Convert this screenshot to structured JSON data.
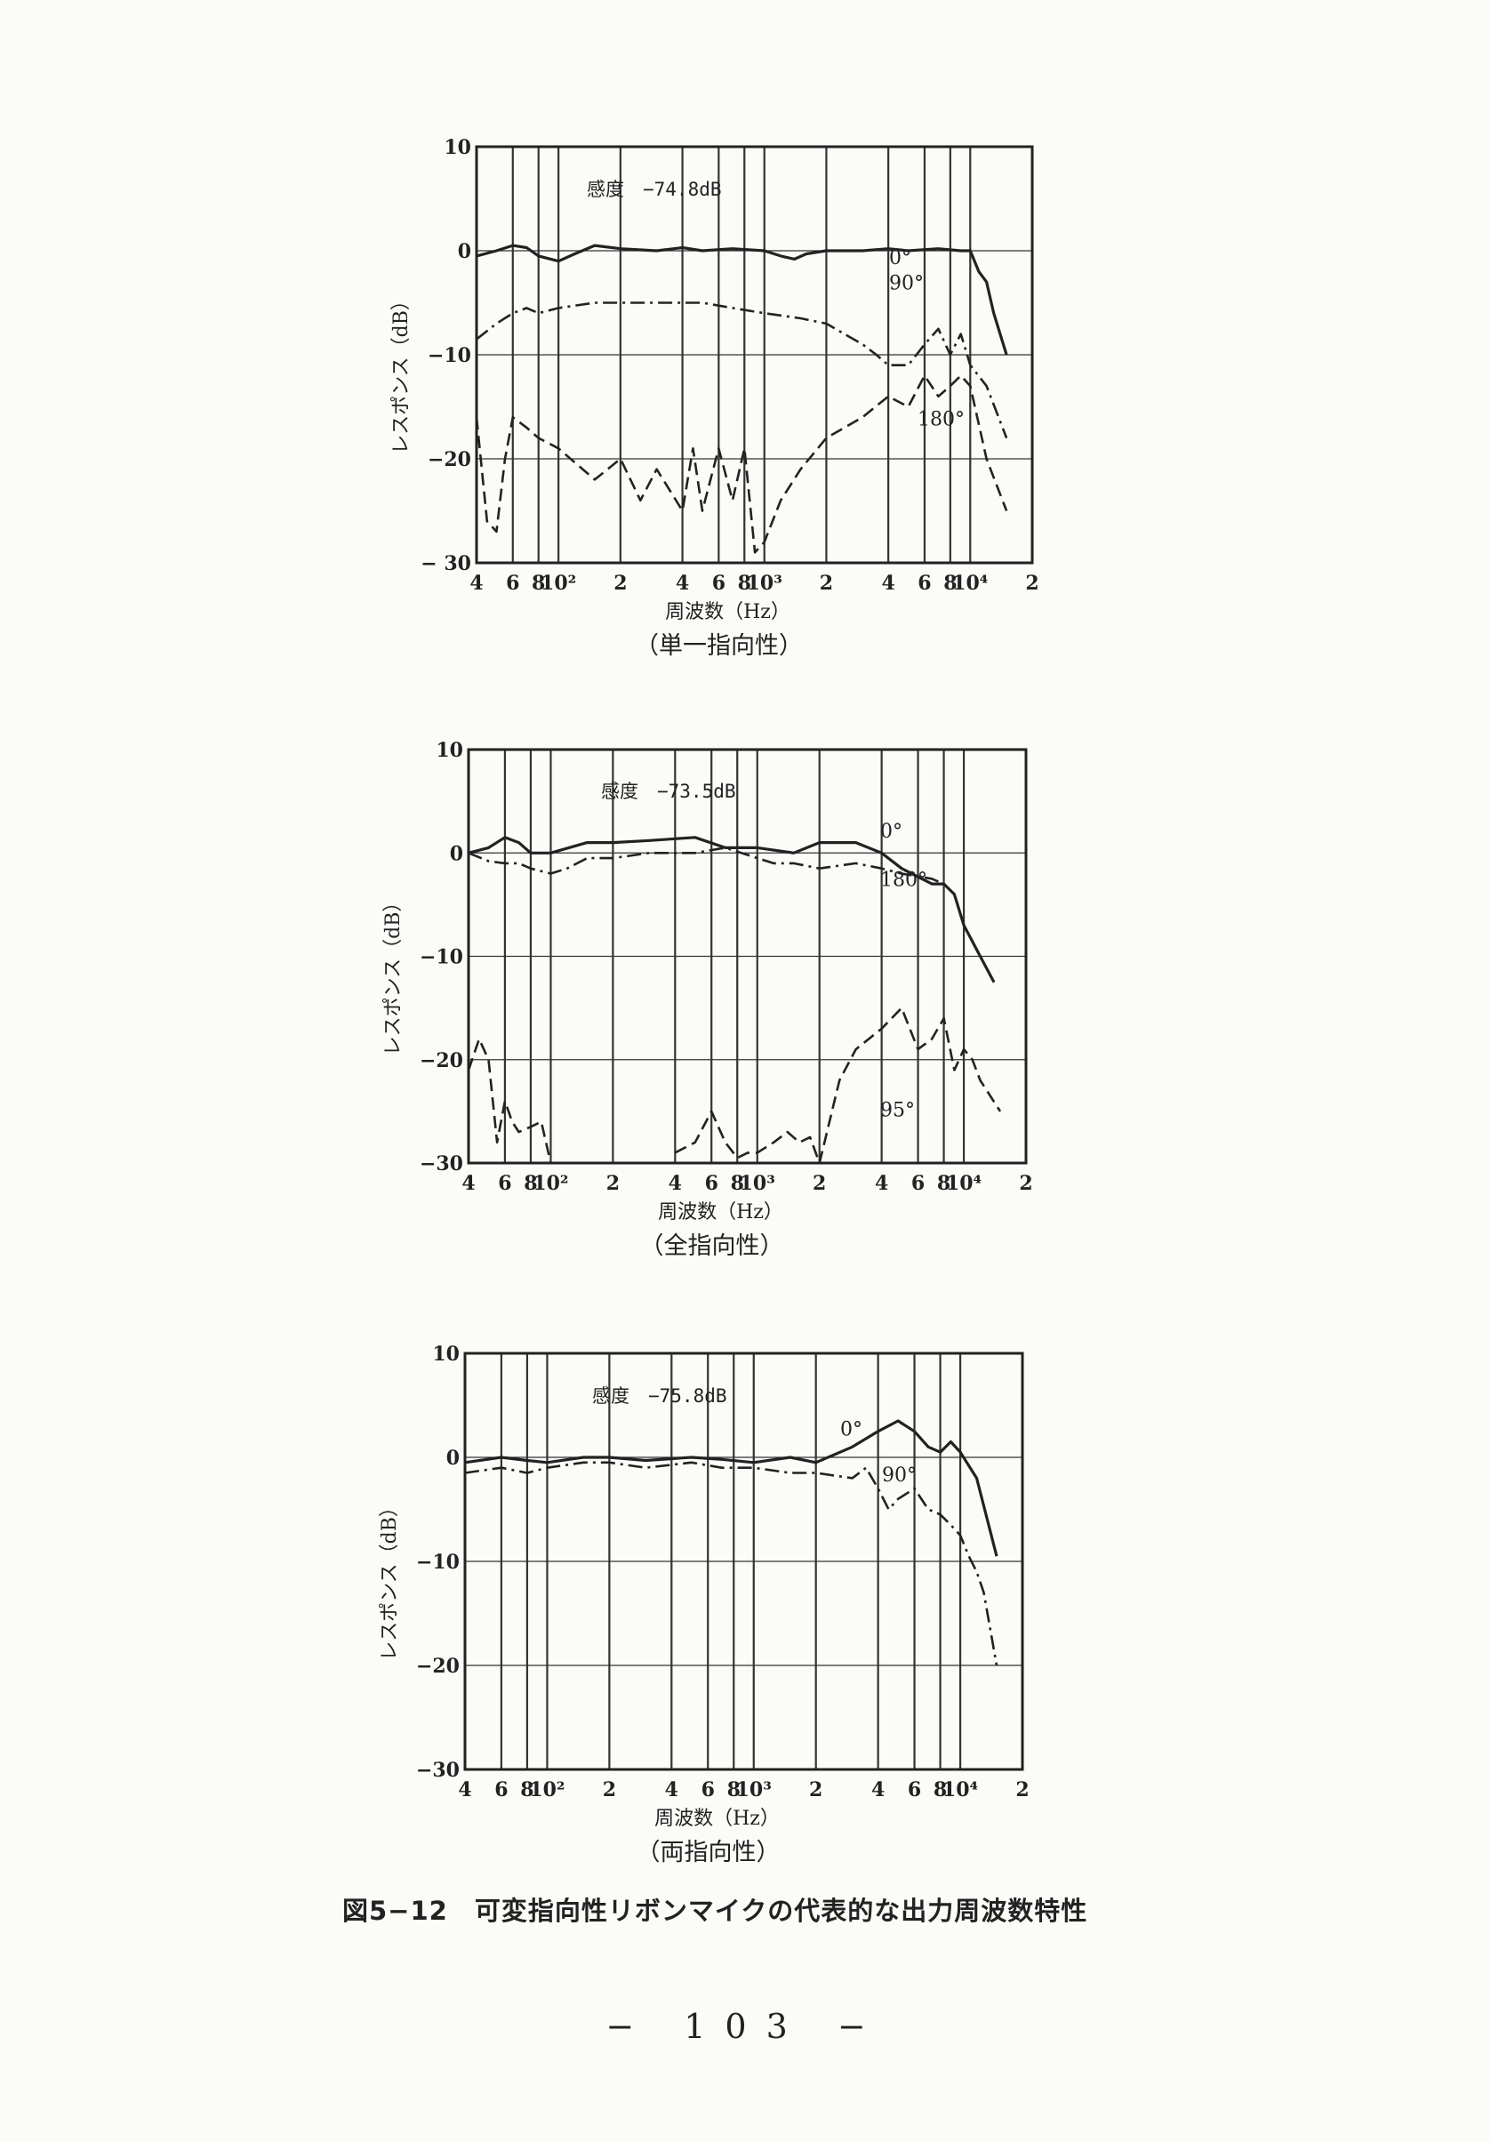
{
  "figure_caption": "図5−12　可変指向性リボンマイクの代表的な出力周波数特性",
  "page_number": "− 103 −",
  "colors": {
    "ink": "#222222",
    "grid": "#333333",
    "paper": "#fbfbf8"
  },
  "chart_data": [
    {
      "type": "line",
      "caption": "（単一指向性）",
      "sensitivity_label": "感度　−74.8dB",
      "xlabel": "周波数（Hz）",
      "ylabel": "レスポンス（dB）",
      "x_scale": "log",
      "xlim": [
        40,
        20000
      ],
      "ylim": [
        -30,
        10
      ],
      "x_tick_labels": [
        "4",
        "6",
        "8",
        "10²",
        "2",
        "4",
        "6",
        "8",
        "10³",
        "2",
        "4",
        "6",
        "8",
        "10⁴",
        "2"
      ],
      "y_tick_labels": [
        "10",
        "0",
        "−10",
        "−20",
        "− 30"
      ],
      "grid": true,
      "series": [
        {
          "name": "0°",
          "style": "solid",
          "x": [
            40,
            50,
            60,
            70,
            80,
            100,
            120,
            150,
            200,
            300,
            400,
            500,
            700,
            1000,
            1200,
            1400,
            1600,
            2000,
            3000,
            4000,
            5000,
            7000,
            9000,
            10000,
            11000,
            12000,
            13000,
            15000
          ],
          "y": [
            -0.5,
            0,
            0.5,
            0.3,
            -0.5,
            -1,
            -0.3,
            0.5,
            0.2,
            0,
            0.3,
            0,
            0.2,
            0,
            -0.5,
            -0.8,
            -0.3,
            0,
            0,
            0.2,
            0,
            0.2,
            0,
            0,
            -2,
            -3,
            -6,
            -10
          ]
        },
        {
          "name": "90°",
          "style": "dash-dot",
          "x": [
            40,
            50,
            60,
            70,
            80,
            100,
            150,
            200,
            300,
            500,
            700,
            1000,
            1500,
            2000,
            3000,
            3500,
            4000,
            5000,
            6000,
            7000,
            8000,
            9000,
            10000,
            12000,
            15000
          ],
          "y": [
            -8.5,
            -7,
            -6,
            -5.5,
            -6,
            -5.5,
            -5,
            -5,
            -5,
            -5,
            -5.5,
            -6,
            -6.5,
            -7,
            -9,
            -10,
            -11,
            -11,
            -9,
            -7.5,
            -10,
            -8,
            -11,
            -13,
            -18
          ]
        },
        {
          "name": "180°",
          "style": "dashed",
          "x": [
            40,
            45,
            50,
            55,
            60,
            70,
            80,
            100,
            150,
            200,
            250,
            300,
            400,
            450,
            500,
            600,
            700,
            800,
            900,
            1000,
            1200,
            1500,
            2000,
            3000,
            4000,
            5000,
            6000,
            7000,
            8000,
            9000,
            10000,
            12000,
            15000
          ],
          "y": [
            -16,
            -26,
            -27,
            -20,
            -16,
            -17,
            -18,
            -19,
            -22,
            -20,
            -24,
            -21,
            -25,
            -19,
            -25,
            -19,
            -24,
            -19,
            -29,
            -28,
            -24,
            -21,
            -18,
            -16,
            -14,
            -15,
            -12,
            -14,
            -13,
            -12,
            -13,
            -20,
            -25
          ]
        }
      ]
    },
    {
      "type": "line",
      "caption": "（全指向性）",
      "sensitivity_label": "感度　−73.5dB",
      "xlabel": "周波数（Hz）",
      "ylabel": "レスポンス（dB）",
      "x_scale": "log",
      "xlim": [
        40,
        20000
      ],
      "ylim": [
        -30,
        10
      ],
      "x_tick_labels": [
        "4",
        "6",
        "8",
        "10²",
        "2",
        "4",
        "6",
        "8",
        "10³",
        "2",
        "4",
        "6",
        "8",
        "10⁴",
        "2"
      ],
      "y_tick_labels": [
        "10",
        "0",
        "−10",
        "−20",
        "−30"
      ],
      "grid": true,
      "series": [
        {
          "name": "0°",
          "style": "solid",
          "x": [
            40,
            50,
            60,
            70,
            80,
            100,
            150,
            200,
            300,
            500,
            700,
            1000,
            1500,
            2000,
            3000,
            4000,
            5000,
            7000,
            8000,
            9000,
            10000,
            12000,
            14000
          ],
          "y": [
            0,
            0.5,
            1.5,
            1,
            0,
            0,
            1,
            1,
            1.2,
            1.5,
            0.5,
            0.5,
            0,
            1,
            1,
            0,
            -1.5,
            -3,
            -3,
            -4,
            -7,
            -10,
            -12.5
          ]
        },
        {
          "name": "180°",
          "style": "dash-dot",
          "x": [
            40,
            50,
            60,
            70,
            80,
            100,
            120,
            150,
            200,
            300,
            500,
            700,
            1000,
            1200,
            1500,
            2000,
            3000,
            4000,
            5000,
            7000,
            8000,
            9000,
            10000,
            12000,
            14000
          ],
          "y": [
            0,
            -0.8,
            -1,
            -1,
            -1.5,
            -2,
            -1.5,
            -0.5,
            -0.5,
            0,
            0,
            0.5,
            -0.5,
            -1,
            -1,
            -1.5,
            -1,
            -1.5,
            -2,
            -2.5,
            -3,
            -4,
            -7,
            -10,
            -12.5
          ]
        },
        {
          "name": "95°",
          "style": "dashed",
          "x": [
            40,
            45,
            50,
            55,
            60,
            65,
            70,
            80,
            90,
            100,
            400,
            500,
            600,
            700,
            800,
            900,
            1000,
            1200,
            1400,
            1600,
            1800,
            2000,
            2500,
            3000,
            4000,
            5000,
            6000,
            7000,
            8000,
            9000,
            10000,
            11000,
            12000,
            15000
          ],
          "y": [
            -21,
            -18,
            -20,
            -28,
            -24,
            -26,
            -27,
            -26.5,
            -26,
            -30,
            -29,
            -28,
            -25,
            -28,
            -29.5,
            -29,
            -29,
            -28,
            -27,
            -28,
            -27.5,
            -30,
            -22,
            -19,
            -17,
            -15,
            -19,
            -18,
            -16,
            -21,
            -19,
            -20,
            -22,
            -25
          ]
        }
      ]
    },
    {
      "type": "line",
      "caption": "（両指向性）",
      "sensitivity_label": "感度　−75.8dB",
      "xlabel": "周波数（Hz）",
      "ylabel": "レスポンス（dB）",
      "x_scale": "log",
      "xlim": [
        40,
        20000
      ],
      "ylim": [
        -30,
        10
      ],
      "x_tick_labels": [
        "4",
        "6",
        "8",
        "10²",
        "2",
        "4",
        "6",
        "8",
        "10³",
        "2",
        "4",
        "6",
        "8",
        "10⁴",
        "2"
      ],
      "y_tick_labels": [
        "10",
        "0",
        "−10",
        "−20",
        "−30"
      ],
      "grid": true,
      "series": [
        {
          "name": "0°",
          "style": "solid",
          "x": [
            40,
            60,
            80,
            100,
            150,
            200,
            300,
            500,
            700,
            1000,
            1500,
            2000,
            3000,
            4000,
            5000,
            6000,
            7000,
            8000,
            9000,
            10000,
            12000,
            15000
          ],
          "y": [
            -0.5,
            0,
            -0.3,
            -0.5,
            0,
            0,
            -0.3,
            0,
            -0.2,
            -0.5,
            0,
            -0.5,
            1,
            2.5,
            3.5,
            2.5,
            1,
            0.5,
            1.5,
            0.5,
            -2,
            -9.5
          ]
        },
        {
          "name": "90°",
          "style": "dash-dot",
          "x": [
            40,
            60,
            80,
            100,
            150,
            200,
            300,
            500,
            700,
            1000,
            1500,
            2000,
            3000,
            3500,
            4000,
            4500,
            5000,
            6000,
            7000,
            8000,
            9000,
            10000,
            11000,
            12000,
            13000,
            15000
          ],
          "y": [
            -1.5,
            -1,
            -1.5,
            -1,
            -0.5,
            -0.5,
            -1,
            -0.5,
            -1,
            -1,
            -1.5,
            -1.5,
            -2,
            -1,
            -3,
            -5,
            -4,
            -3,
            -5,
            -5.5,
            -6.5,
            -7.5,
            -9.5,
            -11,
            -13,
            -20
          ]
        }
      ]
    }
  ]
}
